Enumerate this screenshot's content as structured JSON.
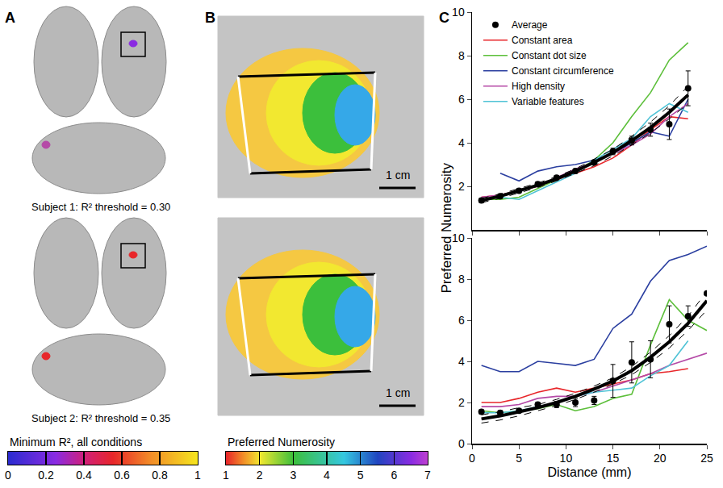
{
  "panel_labels": [
    "A",
    "B",
    "C"
  ],
  "panel_a": {
    "subjects": [
      "Subject 1: R² threshold = 0.30",
      "Subject 2: R² threshold = 0.35"
    ]
  },
  "panel_b": {
    "scale_bars": [
      "1 cm",
      "1 cm"
    ]
  },
  "colorbars": [
    {
      "title": "Minimum R², all conditions",
      "range": [
        0,
        1
      ],
      "ticks": [
        0,
        0.2,
        0.4,
        0.6,
        0.8,
        1
      ]
    },
    {
      "title": "Preferred Numerosity",
      "range": [
        1,
        7
      ],
      "ticks": [
        1,
        2,
        3,
        4,
        5,
        6,
        7
      ]
    }
  ],
  "chart_data": [
    {
      "type": "line",
      "legend": "top left",
      "tick_labels": "y",
      "x": [
        1,
        3,
        5,
        7,
        9,
        11,
        13,
        15,
        17,
        19,
        21,
        23
      ],
      "xlim": [
        0,
        25
      ],
      "xticks": [
        0,
        5,
        10,
        15,
        20,
        25
      ],
      "ylim": [
        0,
        10
      ],
      "yticks": [
        2,
        4,
        6,
        8,
        10
      ],
      "average": {
        "name": "Average",
        "color": "#000000",
        "marker": "circle",
        "values": [
          1.35,
          1.55,
          1.8,
          2.1,
          2.4,
          2.7,
          3.1,
          3.6,
          4.1,
          4.6,
          4.85,
          6.5
        ],
        "errors": [
          0.1,
          0.1,
          0.1,
          0.1,
          0.1,
          0.1,
          0.1,
          0.15,
          0.2,
          0.3,
          0.7,
          0.8
        ]
      },
      "fit": [
        1.35,
        1.55,
        1.8,
        2.05,
        2.35,
        2.7,
        3.1,
        3.55,
        4.1,
        4.7,
        5.4,
        6.2
      ],
      "fit_lower": [
        1.25,
        1.45,
        1.7,
        1.95,
        2.25,
        2.6,
        2.95,
        3.4,
        3.9,
        4.45,
        5.1,
        5.8
      ],
      "fit_upper": [
        1.45,
        1.65,
        1.9,
        2.15,
        2.45,
        2.8,
        3.25,
        3.7,
        4.3,
        4.95,
        5.7,
        6.6
      ],
      "series": [
        {
          "name": "Constant area",
          "color": "#e8262a",
          "values": [
            1.5,
            1.6,
            1.8,
            2.0,
            2.3,
            2.6,
            2.9,
            3.3,
            3.9,
            4.6,
            5.2,
            5.1
          ]
        },
        {
          "name": "Constant dot size",
          "color": "#5cbf3a",
          "values": [
            1.4,
            1.4,
            1.5,
            1.9,
            2.3,
            2.7,
            3.2,
            4.0,
            5.2,
            6.3,
            7.8,
            8.6
          ]
        },
        {
          "name": "Constant circumference",
          "color": "#2b3fa0",
          "values": [
            null,
            2.6,
            2.25,
            2.7,
            2.9,
            3.0,
            3.2,
            3.5,
            4.0,
            4.5,
            4.3,
            6.0
          ]
        },
        {
          "name": "High density",
          "color": "#b54aa7",
          "values": [
            1.5,
            1.6,
            1.8,
            2.0,
            2.4,
            2.8,
            3.1,
            3.5,
            3.9,
            4.4,
            5.2,
            5.8
          ]
        },
        {
          "name": "Variable features",
          "color": "#4fc3d6",
          "values": [
            1.4,
            1.5,
            1.4,
            1.8,
            2.2,
            2.6,
            3.2,
            3.7,
            4.2,
            5.2,
            5.8,
            5.4
          ]
        }
      ]
    },
    {
      "type": "line",
      "xlabel": "Distance (mm)",
      "ylabel": "Preferred Numerosity",
      "x": [
        1,
        3,
        5,
        7,
        9,
        11,
        13,
        15,
        17,
        19,
        21,
        23,
        25
      ],
      "xlim": [
        0,
        25
      ],
      "xticks": [
        0,
        5,
        10,
        15,
        20,
        25
      ],
      "ylim": [
        0,
        10
      ],
      "yticks": [
        0,
        2,
        4,
        6,
        8,
        10
      ],
      "average": {
        "name": "Average",
        "color": "#000000",
        "marker": "circle",
        "values": [
          1.55,
          1.5,
          1.6,
          1.9,
          1.9,
          2.0,
          2.1,
          3.05,
          3.95,
          4.1,
          5.8,
          6.2,
          7.3
        ],
        "errors": [
          0.1,
          0.1,
          0.1,
          0.1,
          0.15,
          0.2,
          0.2,
          0.8,
          1.0,
          0.9,
          0.9,
          0.5,
          0
        ]
      },
      "fit": [
        1.2,
        1.35,
        1.55,
        1.75,
        2.0,
        2.3,
        2.65,
        3.05,
        3.55,
        4.2,
        4.95,
        5.85,
        6.95
      ],
      "fit_lower": [
        1.0,
        1.15,
        1.35,
        1.6,
        1.85,
        2.15,
        2.5,
        2.9,
        3.35,
        3.95,
        4.65,
        5.5,
        6.5
      ],
      "fit_upper": [
        1.4,
        1.55,
        1.75,
        1.9,
        2.15,
        2.45,
        2.8,
        3.2,
        3.75,
        4.45,
        5.25,
        6.2,
        7.4
      ],
      "series": [
        {
          "name": "Constant area",
          "color": "#e8262a",
          "values": [
            2.0,
            2.0,
            2.2,
            2.5,
            2.7,
            2.5,
            2.7,
            2.9,
            3.1,
            3.4,
            3.5,
            3.65,
            null
          ]
        },
        {
          "name": "Constant dot size",
          "color": "#5cbf3a",
          "values": [
            1.6,
            1.5,
            1.6,
            1.7,
            1.9,
            1.6,
            1.8,
            2.2,
            2.4,
            4.8,
            7.0,
            6.0,
            5.5
          ]
        },
        {
          "name": "Constant circumference",
          "color": "#2b3fa0",
          "values": [
            3.8,
            3.5,
            3.5,
            4.0,
            3.9,
            3.8,
            4.1,
            5.6,
            6.3,
            7.9,
            8.9,
            9.2,
            9.6
          ]
        },
        {
          "name": "High density",
          "color": "#b54aa7",
          "values": [
            1.8,
            1.8,
            1.9,
            2.2,
            2.3,
            2.3,
            2.5,
            2.8,
            3.1,
            3.4,
            3.8,
            4.1,
            4.4
          ]
        },
        {
          "name": "Variable features",
          "color": "#4fc3d6",
          "values": [
            1.5,
            1.5,
            1.6,
            1.8,
            2.0,
            2.3,
            2.5,
            2.6,
            2.7,
            3.3,
            3.8,
            5.0,
            null
          ]
        }
      ]
    }
  ]
}
